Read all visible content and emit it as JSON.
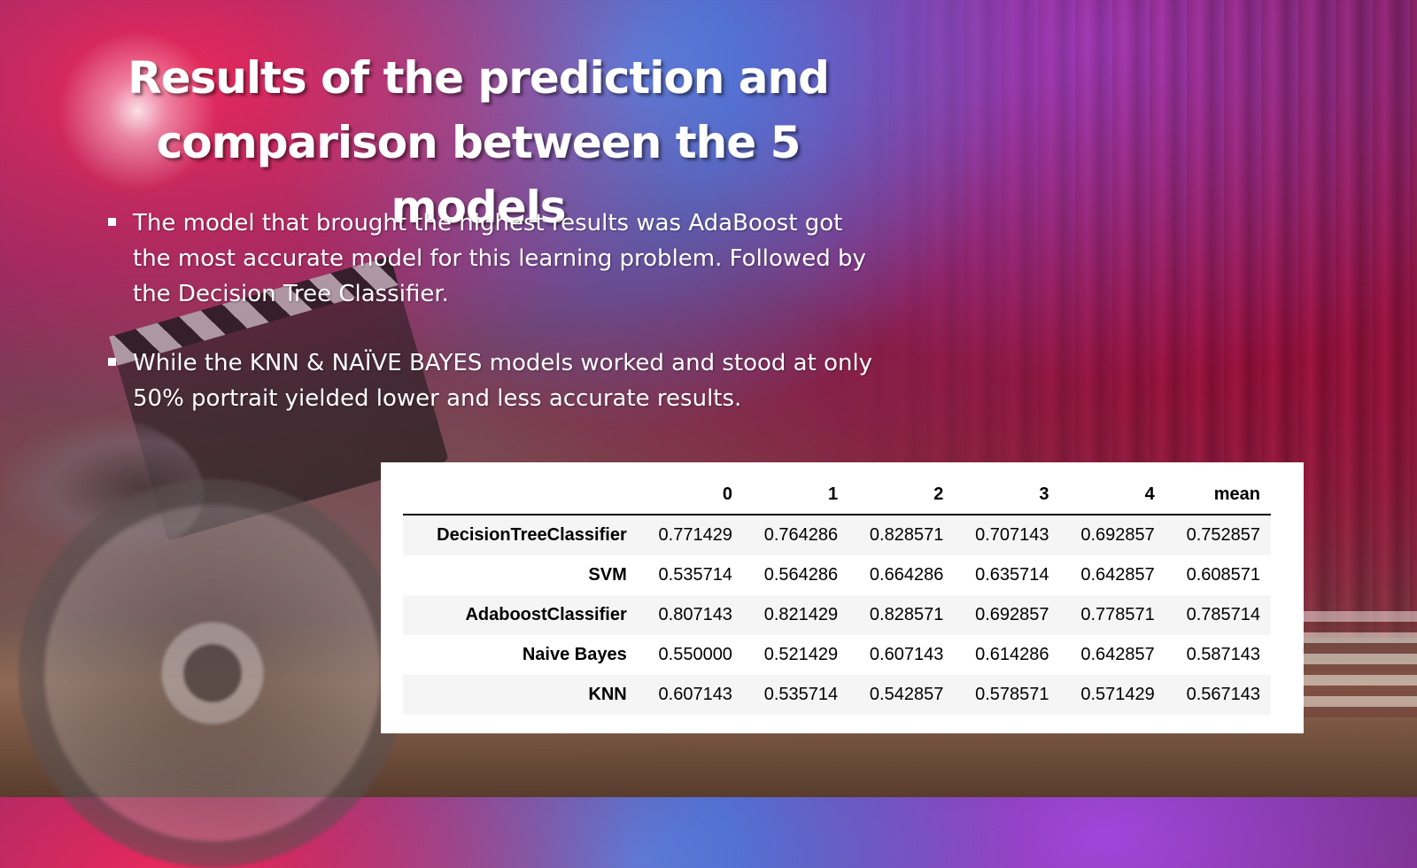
{
  "slide": {
    "title_line1": "Results of the prediction and",
    "title_line2": "comparison between the 5 models",
    "bullets": [
      "The model that brought the highest results was AdaBoost got the most accurate model for this learning problem. Followed by the Decision Tree Classifier.",
      "While the KNN & NAÏVE BAYES models worked and stood at only 50% portrait yielded lower and less accurate results."
    ]
  },
  "table": {
    "columns": [
      "",
      "0",
      "1",
      "2",
      "3",
      "4",
      "mean"
    ],
    "rows": [
      {
        "label": "DecisionTreeClassifier",
        "values": [
          "0.771429",
          "0.764286",
          "0.828571",
          "0.707143",
          "0.692857",
          "0.752857"
        ]
      },
      {
        "label": "SVM",
        "values": [
          "0.535714",
          "0.564286",
          "0.664286",
          "0.635714",
          "0.642857",
          "0.608571"
        ]
      },
      {
        "label": "AdaboostClassifier",
        "values": [
          "0.807143",
          "0.821429",
          "0.828571",
          "0.692857",
          "0.778571",
          "0.785714"
        ]
      },
      {
        "label": "Naive Bayes",
        "values": [
          "0.550000",
          "0.521429",
          "0.607143",
          "0.614286",
          "0.642857",
          "0.587143"
        ]
      },
      {
        "label": "KNN",
        "values": [
          "0.607143",
          "0.535714",
          "0.542857",
          "0.578571",
          "0.571429",
          "0.567143"
        ]
      }
    ]
  }
}
